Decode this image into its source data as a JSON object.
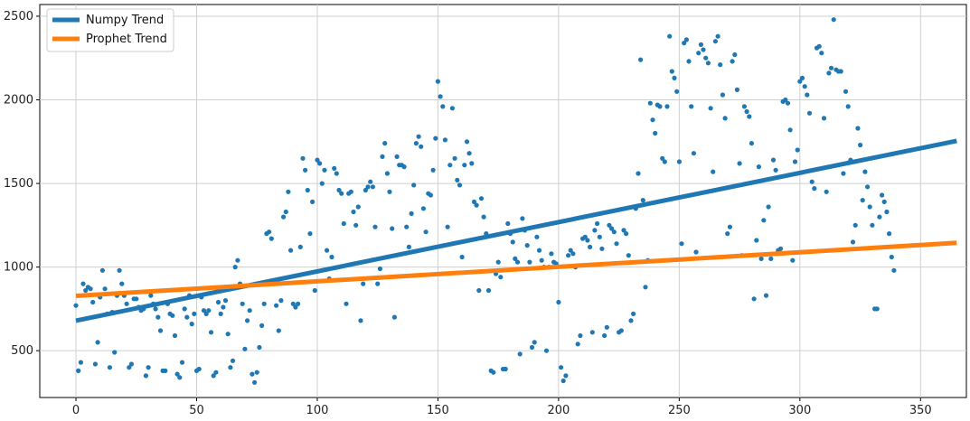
{
  "chart_data": {
    "type": "scatter",
    "xlim": [
      -15,
      369
    ],
    "ylim": [
      220,
      2570
    ],
    "grid": true,
    "legend_placement": "top-left",
    "x_ticks": [
      0,
      50,
      100,
      150,
      200,
      250,
      300,
      350
    ],
    "y_ticks": [
      500,
      1000,
      1500,
      2000,
      2500
    ],
    "x_tick_labels": [
      "0",
      "50",
      "100",
      "150",
      "200",
      "250",
      "300",
      "350"
    ],
    "y_tick_labels": [
      "500",
      "1000",
      "1500",
      "2000",
      "2500"
    ],
    "scatter": {
      "color": "#1f77b4",
      "points": [
        [
          0,
          770
        ],
        [
          1,
          380
        ],
        [
          2,
          430
        ],
        [
          3,
          900
        ],
        [
          4,
          860
        ],
        [
          5,
          880
        ],
        [
          6,
          870
        ],
        [
          7,
          790
        ],
        [
          8,
          420
        ],
        [
          9,
          550
        ],
        [
          10,
          820
        ],
        [
          11,
          980
        ],
        [
          12,
          870
        ],
        [
          13,
          720
        ],
        [
          14,
          400
        ],
        [
          15,
          730
        ],
        [
          16,
          490
        ],
        [
          17,
          830
        ],
        [
          18,
          980
        ],
        [
          19,
          900
        ],
        [
          20,
          830
        ],
        [
          21,
          780
        ],
        [
          22,
          400
        ],
        [
          23,
          420
        ],
        [
          24,
          810
        ],
        [
          25,
          810
        ],
        [
          26,
          760
        ],
        [
          27,
          740
        ],
        [
          28,
          750
        ],
        [
          29,
          350
        ],
        [
          30,
          400
        ],
        [
          31,
          830
        ],
        [
          32,
          780
        ],
        [
          33,
          750
        ],
        [
          34,
          700
        ],
        [
          35,
          620
        ],
        [
          36,
          380
        ],
        [
          37,
          380
        ],
        [
          38,
          780
        ],
        [
          39,
          720
        ],
        [
          40,
          710
        ],
        [
          41,
          590
        ],
        [
          42,
          360
        ],
        [
          43,
          340
        ],
        [
          44,
          430
        ],
        [
          45,
          750
        ],
        [
          46,
          700
        ],
        [
          47,
          830
        ],
        [
          48,
          660
        ],
        [
          49,
          720
        ],
        [
          50,
          380
        ],
        [
          51,
          390
        ],
        [
          52,
          820
        ],
        [
          53,
          740
        ],
        [
          54,
          720
        ],
        [
          55,
          740
        ],
        [
          56,
          610
        ],
        [
          57,
          350
        ],
        [
          58,
          370
        ],
        [
          59,
          790
        ],
        [
          60,
          720
        ],
        [
          61,
          760
        ],
        [
          62,
          800
        ],
        [
          63,
          600
        ],
        [
          64,
          400
        ],
        [
          65,
          440
        ],
        [
          66,
          1000
        ],
        [
          67,
          1040
        ],
        [
          68,
          900
        ],
        [
          69,
          780
        ],
        [
          70,
          510
        ],
        [
          71,
          680
        ],
        [
          72,
          740
        ],
        [
          73,
          360
        ],
        [
          74,
          310
        ],
        [
          75,
          370
        ],
        [
          76,
          520
        ],
        [
          77,
          650
        ],
        [
          78,
          780
        ],
        [
          79,
          1200
        ],
        [
          80,
          1210
        ],
        [
          81,
          1170
        ],
        [
          82,
          900
        ],
        [
          83,
          770
        ],
        [
          84,
          620
        ],
        [
          85,
          800
        ],
        [
          86,
          1300
        ],
        [
          87,
          1330
        ],
        [
          88,
          1450
        ],
        [
          89,
          1100
        ],
        [
          90,
          780
        ],
        [
          91,
          760
        ],
        [
          92,
          780
        ],
        [
          93,
          1120
        ],
        [
          94,
          1650
        ],
        [
          95,
          1580
        ],
        [
          96,
          1460
        ],
        [
          97,
          1200
        ],
        [
          98,
          1390
        ],
        [
          99,
          860
        ],
        [
          100,
          1640
        ],
        [
          101,
          1620
        ],
        [
          102,
          1500
        ],
        [
          103,
          1580
        ],
        [
          104,
          1100
        ],
        [
          105,
          930
        ],
        [
          106,
          1060
        ],
        [
          107,
          1590
        ],
        [
          108,
          1560
        ],
        [
          109,
          1460
        ],
        [
          110,
          1440
        ],
        [
          111,
          1260
        ],
        [
          112,
          780
        ],
        [
          113,
          1440
        ],
        [
          114,
          1450
        ],
        [
          115,
          1330
        ],
        [
          116,
          1250
        ],
        [
          117,
          1360
        ],
        [
          118,
          680
        ],
        [
          119,
          900
        ],
        [
          120,
          1460
        ],
        [
          121,
          1480
        ],
        [
          122,
          1510
        ],
        [
          123,
          1480
        ],
        [
          124,
          1240
        ],
        [
          125,
          900
        ],
        [
          126,
          990
        ],
        [
          127,
          1660
        ],
        [
          128,
          1740
        ],
        [
          129,
          1560
        ],
        [
          130,
          1450
        ],
        [
          131,
          1230
        ],
        [
          132,
          700
        ],
        [
          133,
          1660
        ],
        [
          134,
          1610
        ],
        [
          135,
          1610
        ],
        [
          136,
          1600
        ],
        [
          137,
          1240
        ],
        [
          138,
          1120
        ],
        [
          139,
          1320
        ],
        [
          140,
          1490
        ],
        [
          141,
          1740
        ],
        [
          142,
          1780
        ],
        [
          143,
          1720
        ],
        [
          144,
          1350
        ],
        [
          145,
          1210
        ],
        [
          146,
          1440
        ],
        [
          147,
          1430
        ],
        [
          148,
          1580
        ],
        [
          149,
          1770
        ],
        [
          150,
          2110
        ],
        [
          151,
          2020
        ],
        [
          152,
          1960
        ],
        [
          153,
          1760
        ],
        [
          154,
          1240
        ],
        [
          155,
          1610
        ],
        [
          156,
          1950
        ],
        [
          157,
          1650
        ],
        [
          158,
          1520
        ],
        [
          159,
          1490
        ],
        [
          160,
          1060
        ],
        [
          161,
          1610
        ],
        [
          162,
          1750
        ],
        [
          163,
          1680
        ],
        [
          164,
          1620
        ],
        [
          165,
          1390
        ],
        [
          166,
          1370
        ],
        [
          167,
          860
        ],
        [
          168,
          1410
        ],
        [
          169,
          1300
        ],
        [
          170,
          1200
        ],
        [
          171,
          860
        ],
        [
          172,
          380
        ],
        [
          173,
          370
        ],
        [
          174,
          960
        ],
        [
          175,
          1030
        ],
        [
          176,
          940
        ],
        [
          177,
          390
        ],
        [
          178,
          390
        ],
        [
          179,
          1260
        ],
        [
          180,
          1200
        ],
        [
          181,
          1150
        ],
        [
          182,
          1050
        ],
        [
          183,
          1030
        ],
        [
          184,
          480
        ],
        [
          185,
          1290
        ],
        [
          186,
          1220
        ],
        [
          187,
          1130
        ],
        [
          188,
          1030
        ],
        [
          189,
          520
        ],
        [
          190,
          550
        ],
        [
          191,
          1180
        ],
        [
          192,
          1100
        ],
        [
          193,
          1040
        ],
        [
          194,
          1000
        ],
        [
          195,
          500
        ],
        [
          196,
          1000
        ],
        [
          197,
          1080
        ],
        [
          198,
          1030
        ],
        [
          199,
          1020
        ],
        [
          200,
          790
        ],
        [
          201,
          400
        ],
        [
          202,
          320
        ],
        [
          203,
          350
        ],
        [
          204,
          1070
        ],
        [
          205,
          1100
        ],
        [
          206,
          1080
        ],
        [
          207,
          1000
        ],
        [
          208,
          540
        ],
        [
          209,
          590
        ],
        [
          210,
          1170
        ],
        [
          211,
          1180
        ],
        [
          212,
          1160
        ],
        [
          213,
          1120
        ],
        [
          214,
          610
        ],
        [
          215,
          1220
        ],
        [
          216,
          1260
        ],
        [
          217,
          1180
        ],
        [
          218,
          1110
        ],
        [
          219,
          590
        ],
        [
          220,
          640
        ],
        [
          221,
          1250
        ],
        [
          222,
          1230
        ],
        [
          223,
          1210
        ],
        [
          224,
          1140
        ],
        [
          225,
          610
        ],
        [
          226,
          620
        ],
        [
          227,
          1220
        ],
        [
          228,
          1200
        ],
        [
          229,
          1070
        ],
        [
          230,
          680
        ],
        [
          231,
          720
        ],
        [
          232,
          1350
        ],
        [
          233,
          1560
        ],
        [
          234,
          2240
        ],
        [
          235,
          1400
        ],
        [
          236,
          880
        ],
        [
          237,
          1040
        ],
        [
          238,
          1980
        ],
        [
          239,
          1880
        ],
        [
          240,
          1800
        ],
        [
          241,
          1970
        ],
        [
          242,
          1960
        ],
        [
          243,
          1650
        ],
        [
          244,
          1630
        ],
        [
          245,
          1960
        ],
        [
          246,
          2380
        ],
        [
          247,
          2170
        ],
        [
          248,
          2130
        ],
        [
          249,
          2050
        ],
        [
          250,
          1630
        ],
        [
          251,
          1140
        ],
        [
          252,
          2340
        ],
        [
          253,
          2360
        ],
        [
          254,
          2230
        ],
        [
          255,
          1960
        ],
        [
          256,
          1680
        ],
        [
          257,
          1090
        ],
        [
          258,
          2280
        ],
        [
          259,
          2330
        ],
        [
          260,
          2300
        ],
        [
          261,
          2250
        ],
        [
          262,
          2220
        ],
        [
          263,
          1950
        ],
        [
          264,
          1570
        ],
        [
          265,
          2350
        ],
        [
          266,
          2380
        ],
        [
          267,
          2210
        ],
        [
          268,
          2030
        ],
        [
          269,
          1890
        ],
        [
          270,
          1200
        ],
        [
          271,
          1240
        ],
        [
          272,
          2230
        ],
        [
          273,
          2270
        ],
        [
          274,
          2060
        ],
        [
          275,
          1620
        ],
        [
          276,
          1070
        ],
        [
          277,
          1960
        ],
        [
          278,
          1930
        ],
        [
          279,
          1900
        ],
        [
          280,
          1740
        ],
        [
          281,
          810
        ],
        [
          282,
          1160
        ],
        [
          283,
          1600
        ],
        [
          284,
          1050
        ],
        [
          285,
          1280
        ],
        [
          286,
          830
        ],
        [
          287,
          1360
        ],
        [
          288,
          1050
        ],
        [
          289,
          1640
        ],
        [
          290,
          1580
        ],
        [
          291,
          1100
        ],
        [
          292,
          1110
        ],
        [
          293,
          1990
        ],
        [
          294,
          2000
        ],
        [
          295,
          1980
        ],
        [
          296,
          1820
        ],
        [
          297,
          1040
        ],
        [
          298,
          1630
        ],
        [
          299,
          1700
        ],
        [
          300,
          2110
        ],
        [
          301,
          2130
        ],
        [
          302,
          2080
        ],
        [
          303,
          2030
        ],
        [
          304,
          1920
        ],
        [
          305,
          1510
        ],
        [
          306,
          1470
        ],
        [
          307,
          2310
        ],
        [
          308,
          2320
        ],
        [
          309,
          2280
        ],
        [
          310,
          1890
        ],
        [
          311,
          1450
        ],
        [
          312,
          2160
        ],
        [
          313,
          2190
        ],
        [
          314,
          2480
        ],
        [
          315,
          2180
        ],
        [
          316,
          2170
        ],
        [
          317,
          2170
        ],
        [
          318,
          1560
        ],
        [
          319,
          2050
        ],
        [
          320,
          1960
        ],
        [
          321,
          1640
        ],
        [
          322,
          1150
        ],
        [
          323,
          1250
        ],
        [
          324,
          1830
        ],
        [
          325,
          1730
        ],
        [
          326,
          1400
        ],
        [
          327,
          1570
        ],
        [
          328,
          1480
        ],
        [
          329,
          1360
        ],
        [
          330,
          1250
        ],
        [
          331,
          750
        ],
        [
          332,
          750
        ],
        [
          333,
          1300
        ],
        [
          334,
          1430
        ],
        [
          335,
          1390
        ],
        [
          336,
          1330
        ],
        [
          337,
          1200
        ],
        [
          338,
          1060
        ],
        [
          339,
          980
        ]
      ]
    },
    "series": [
      {
        "name": "Numpy Trend",
        "color": "#1f77b4",
        "x": [
          0,
          365
        ],
        "y": [
          680,
          1755
        ]
      },
      {
        "name": "Prophet Trend",
        "color": "#ff7f0e",
        "x": [
          0,
          365
        ],
        "y": [
          828,
          1145
        ]
      }
    ]
  }
}
